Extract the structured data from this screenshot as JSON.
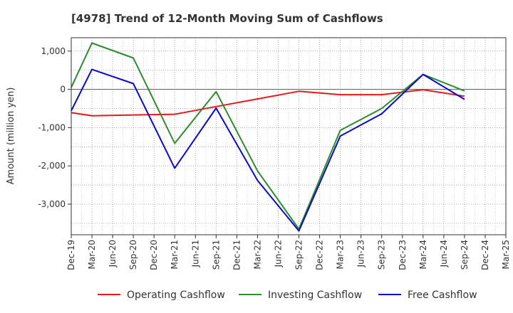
{
  "chart_data": {
    "type": "line",
    "title": "[4978]  Trend of 12-Month Moving Sum of Cashflows",
    "xlabel": "",
    "ylabel": "Amount (million yen)",
    "x": [
      "Dec-19",
      "Mar-20",
      "Jun-20",
      "Sep-20",
      "Dec-20",
      "Mar-21",
      "Jun-21",
      "Sep-21",
      "Dec-21",
      "Mar-22",
      "Jun-22",
      "Sep-22",
      "Dec-22",
      "Mar-23",
      "Jun-23",
      "Sep-23",
      "Dec-23",
      "Mar-24",
      "Jun-24",
      "Sep-24",
      "Dec-24",
      "Mar-25"
    ],
    "ylim": [
      -3800,
      1350
    ],
    "yticks": [
      1000,
      0,
      -1000,
      -2000,
      -3000
    ],
    "ytick_labels": [
      "1,000",
      "0",
      "-1,000",
      "-2,000",
      "-3,000"
    ],
    "grid": true,
    "legend_position": "bottom",
    "series": [
      {
        "name": "Operating Cashflow",
        "color": "#e41a1c",
        "values": [
          -610,
          -690,
          null,
          -670,
          null,
          -650,
          null,
          -450,
          null,
          -250,
          null,
          -50,
          null,
          -140,
          null,
          -140,
          null,
          -10,
          null,
          -180,
          null,
          null
        ]
      },
      {
        "name": "Investing Cashflow",
        "color": "#2e8b2e",
        "values": [
          50,
          1210,
          null,
          820,
          null,
          -1410,
          null,
          -60,
          null,
          -2130,
          null,
          -3650,
          null,
          -1070,
          null,
          -500,
          null,
          390,
          null,
          -40,
          null,
          null
        ]
      },
      {
        "name": "Free Cashflow",
        "color": "#0a0acc",
        "values": [
          -560,
          520,
          null,
          150,
          null,
          -2060,
          null,
          -490,
          null,
          -2380,
          null,
          -3700,
          null,
          -1220,
          null,
          -640,
          null,
          390,
          null,
          -260,
          null,
          null
        ]
      }
    ]
  }
}
